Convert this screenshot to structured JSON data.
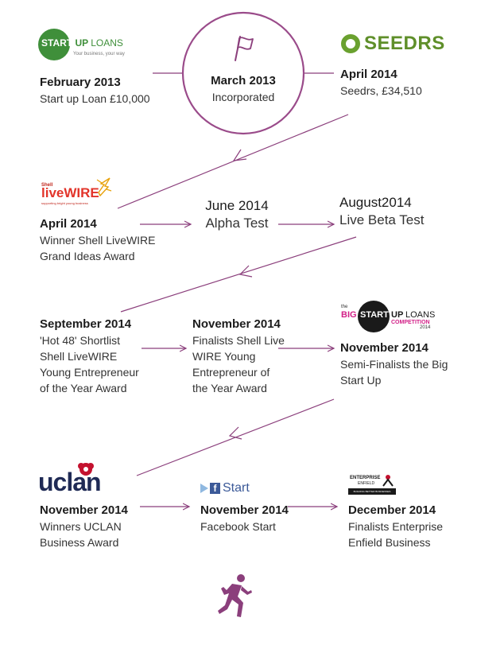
{
  "colors": {
    "accent": "#8b3f7c",
    "circle_border": "#9a4b8a",
    "startup_green": "#3f8f3a",
    "seedrs_green": "#6aa12f",
    "livewire_red": "#e2342a",
    "bigstartup_pink": "#d21f87",
    "facebook_blue": "#3b5998"
  },
  "logos": {
    "startup_loans": {
      "badge": "START",
      "word_up": "UP",
      "word_loans": "LOANS",
      "tagline": "Your business, your way"
    },
    "seedrs": {
      "name": "SEEDRS"
    },
    "livewire": {
      "shell": "Shell",
      "name": "liveWIRE",
      "tagline": "supporting bright young business"
    },
    "big_startup": {
      "the": "the",
      "big": "BIG",
      "start": "START",
      "up": "UP",
      "loans": "LOANS",
      "competition": "COMPETITION",
      "year": "2014"
    },
    "uclan": {
      "name": "uclan"
    },
    "facebook_start": {
      "name": "Start"
    },
    "enterprise_enfield": {
      "line1": "ENTERPRISE",
      "line2": "ENFIELD",
      "tagline": "BUILDING BETTER BUSINESSES"
    }
  },
  "timeline": {
    "feb2013": {
      "date": "February 2013",
      "desc": "Start up Loan £10,000"
    },
    "mar2013": {
      "date": "March 2013",
      "desc": "Incorporated"
    },
    "apr2014": {
      "date": "April 2014",
      "desc": "Seedrs, £34,510"
    },
    "apr2014b": {
      "date": "April 2014",
      "desc_lines": [
        "Winner Shell LiveWIRE",
        "Grand Ideas Award"
      ]
    },
    "jun2014": {
      "date": "June 2014",
      "desc": "Alpha Test"
    },
    "aug2014": {
      "date": "August2014",
      "desc": "Live Beta Test"
    },
    "sep2014": {
      "date": "September 2014",
      "desc_lines": [
        "'Hot 48' Shortlist",
        "Shell LiveWIRE",
        "Young Entrepreneur",
        "of the Year Award"
      ]
    },
    "nov2014a": {
      "date": "November 2014",
      "desc_lines": [
        "Finalists Shell Live",
        "WIRE Young",
        "Entrepreneur of",
        "the Year Award"
      ]
    },
    "nov2014b": {
      "date": "November 2014",
      "desc_lines": [
        "Semi-Finalists the Big",
        "Start Up"
      ]
    },
    "nov2014c": {
      "date": "November 2014",
      "desc_lines": [
        "Winners UCLAN",
        "Business Award"
      ]
    },
    "nov2014d": {
      "date": "November 2014",
      "desc": "Facebook Start"
    },
    "dec2014": {
      "date": "December 2014",
      "desc_lines": [
        "Finalists Enterprise",
        "Enfield Business"
      ]
    }
  }
}
